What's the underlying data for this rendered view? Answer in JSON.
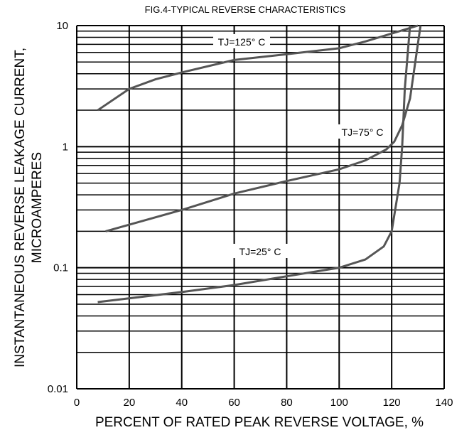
{
  "chart_data": {
    "type": "line",
    "title": "FIG.4-TYPICAL REVERSE CHARACTERISTICS",
    "x_label": "PERCENT OF RATED PEAK REVERSE VOLTAGE, %",
    "y_label": [
      "INSTANTANEOUS REVERSE LEAKAGE CURRENT,",
      "MICROAMPERES"
    ],
    "xlim": [
      0,
      140
    ],
    "xticks": [
      0,
      20,
      40,
      60,
      80,
      100,
      120,
      140
    ],
    "ylim": [
      0.01,
      10
    ],
    "yticks": [
      0.01,
      0.1,
      1,
      10
    ],
    "log_y": true,
    "grid": true,
    "minor_grid": true,
    "series": [
      {
        "name": "TJ=125° C",
        "color": "#555555",
        "x": [
          8,
          20,
          30,
          40,
          60,
          80,
          100,
          110,
          120,
          130
        ],
        "values": [
          2,
          3,
          3.6,
          4.1,
          5.2,
          5.8,
          6.5,
          7.4,
          8.6,
          10
        ]
      },
      {
        "name": "TJ=75° C",
        "color": "#555555",
        "x": [
          11,
          40,
          60,
          80,
          100,
          110,
          118,
          121,
          124,
          127,
          129,
          131
        ],
        "values": [
          0.2,
          0.3,
          0.41,
          0.52,
          0.65,
          0.77,
          0.95,
          1.1,
          1.5,
          2.5,
          5,
          10
        ]
      },
      {
        "name": "TJ=25° C",
        "color": "#555555",
        "x": [
          8,
          40,
          60,
          80,
          100,
          110,
          117,
          120,
          123,
          124,
          125,
          127
        ],
        "values": [
          0.052,
          0.063,
          0.072,
          0.085,
          0.1,
          0.117,
          0.15,
          0.2,
          0.5,
          1,
          3,
          10
        ]
      }
    ]
  }
}
